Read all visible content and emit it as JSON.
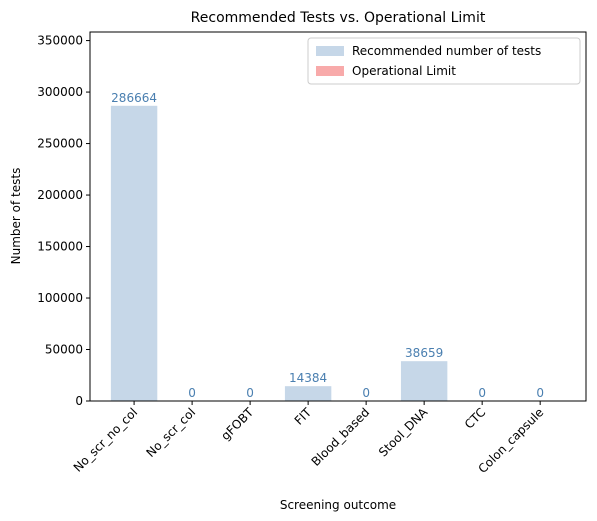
{
  "chart_data": {
    "type": "bar",
    "title": "Recommended Tests vs. Operational Limit",
    "xlabel": "Screening outcome",
    "ylabel": "Number of tests",
    "categories": [
      "No_scr_no_col",
      "No_scr_col",
      "gFOBT",
      "FIT",
      "Blood_based",
      "Stool_DNA",
      "CTC",
      "Colon_capsule"
    ],
    "series": [
      {
        "name": "Recommended number of tests",
        "color": "#c6d7e8",
        "label_color": "#4a7fb0",
        "values": [
          286664,
          0,
          0,
          14384,
          0,
          38659,
          0,
          0
        ]
      },
      {
        "name": "Operational Limit",
        "color": "#f8aaaa",
        "values": [
          null,
          null,
          null,
          null,
          null,
          null,
          null,
          null
        ]
      }
    ],
    "ylim": [
      0,
      358330
    ],
    "yticks": [
      0,
      50000,
      100000,
      150000,
      200000,
      250000,
      300000,
      350000
    ],
    "legend": "upper right"
  }
}
